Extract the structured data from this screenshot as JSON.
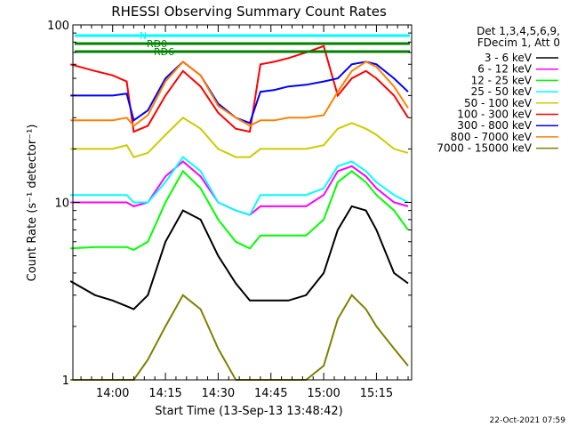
{
  "chart_data": {
    "type": "line",
    "title": "RHESSI Observing Summary Count Rates",
    "xlabel": "Start Time (13-Sep-13 13:48:42)",
    "ylabel": "Count Rate (s⁻¹ detector⁻¹)",
    "yscale": "log",
    "xlim": [
      "13:48:42",
      "15:25:00"
    ],
    "ylim": [
      1,
      100
    ],
    "x_ticks": [
      "14:00",
      "14:15",
      "14:30",
      "14:45",
      "15:00",
      "15:15"
    ],
    "y_ticks": [
      "1",
      "10",
      "100"
    ],
    "legend": {
      "placement": "right",
      "header": [
        "Det 1,3,4,5,6,9,",
        "FDecim 1, Att 0"
      ],
      "entries": [
        {
          "label": "3 - 6 keV",
          "color": "#000000"
        },
        {
          "label": "6 - 12 keV",
          "color": "#ff00ff"
        },
        {
          "label": "12 - 25 keV",
          "color": "#00ff00"
        },
        {
          "label": "25 - 50 keV",
          "color": "#00ffff"
        },
        {
          "label": "50 - 100 keV",
          "color": "#cccc00"
        },
        {
          "label": "100 - 300 keV",
          "color": "#ff0000"
        },
        {
          "label": "300 - 800 keV",
          "color": "#0000ff"
        },
        {
          "label": "800 - 7000 keV",
          "color": "#ff8000"
        },
        {
          "label": "7000 - 15000 keV",
          "color": "#808000"
        }
      ]
    },
    "flags": [
      {
        "label": "N",
        "color": "#00ffff"
      },
      {
        "label": "RD0",
        "color": "#008000"
      },
      {
        "label": "RD6",
        "color": "#008000"
      }
    ],
    "series": [
      {
        "name": "3 - 6 keV",
        "color": "#000000",
        "x": [
          "13:48",
          "13:55",
          "14:00",
          "14:04",
          "14:06",
          "14:10",
          "14:15",
          "14:20",
          "14:25",
          "14:30",
          "14:35",
          "14:39",
          "14:42",
          "14:46",
          "14:50",
          "14:55",
          "15:00",
          "15:04",
          "15:08",
          "15:12",
          "15:15",
          "15:20",
          "15:24"
        ],
        "y": [
          3.6,
          3.0,
          2.8,
          2.6,
          2.5,
          3.0,
          6,
          9,
          8,
          5,
          3.5,
          2.8,
          2.8,
          2.8,
          2.8,
          3.0,
          4,
          7,
          9.5,
          9,
          7,
          4,
          3.5
        ]
      },
      {
        "name": "6 - 12 keV",
        "color": "#ff00ff",
        "x": [
          "13:48",
          "13:55",
          "14:00",
          "14:04",
          "14:06",
          "14:10",
          "14:15",
          "14:20",
          "14:25",
          "14:30",
          "14:35",
          "14:39",
          "14:42",
          "14:46",
          "14:50",
          "14:55",
          "15:00",
          "15:04",
          "15:08",
          "15:12",
          "15:15",
          "15:20",
          "15:24"
        ],
        "y": [
          10,
          10,
          10,
          10,
          9.5,
          10,
          14,
          17,
          14,
          10,
          9,
          8.5,
          9.5,
          9.5,
          9.5,
          9.5,
          11,
          15,
          16,
          14,
          12,
          10,
          9.5
        ]
      },
      {
        "name": "12 - 25 keV",
        "color": "#00ff00",
        "x": [
          "13:48",
          "13:55",
          "14:00",
          "14:04",
          "14:06",
          "14:10",
          "14:15",
          "14:20",
          "14:25",
          "14:30",
          "14:35",
          "14:39",
          "14:42",
          "14:46",
          "14:50",
          "14:55",
          "15:00",
          "15:04",
          "15:08",
          "15:12",
          "15:15",
          "15:20",
          "15:24"
        ],
        "y": [
          5.5,
          5.6,
          5.6,
          5.6,
          5.4,
          6,
          10,
          15,
          12,
          8,
          6,
          5.5,
          6.5,
          6.5,
          6.5,
          6.5,
          8,
          13,
          15,
          13,
          11,
          9,
          7
        ]
      },
      {
        "name": "25 - 50 keV",
        "color": "#00ffff",
        "x": [
          "13:48",
          "13:55",
          "14:00",
          "14:04",
          "14:06",
          "14:10",
          "14:15",
          "14:20",
          "14:25",
          "14:30",
          "14:35",
          "14:39",
          "14:42",
          "14:46",
          "14:50",
          "14:55",
          "15:00",
          "15:04",
          "15:08",
          "15:12",
          "15:15",
          "15:20",
          "15:24"
        ],
        "y": [
          11,
          11,
          11,
          11,
          10,
          10,
          13,
          18,
          15,
          10,
          9,
          8.5,
          11,
          11,
          11,
          11,
          12,
          16,
          17,
          15,
          13,
          11,
          10
        ]
      },
      {
        "name": "50 - 100 keV",
        "color": "#cccc00",
        "x": [
          "13:48",
          "13:55",
          "14:00",
          "14:04",
          "14:06",
          "14:10",
          "14:15",
          "14:20",
          "14:25",
          "14:30",
          "14:35",
          "14:39",
          "14:42",
          "14:46",
          "14:50",
          "14:55",
          "15:00",
          "15:04",
          "15:08",
          "15:12",
          "15:15",
          "15:20",
          "15:24"
        ],
        "y": [
          20,
          20,
          20,
          21,
          18,
          19,
          24,
          30,
          26,
          20,
          18,
          18,
          20,
          20,
          20,
          20,
          21,
          26,
          28,
          26,
          24,
          20,
          19
        ]
      },
      {
        "name": "100 - 300 keV",
        "color": "#ff0000",
        "x": [
          "13:48",
          "13:55",
          "14:00",
          "14:04",
          "14:06",
          "14:10",
          "14:15",
          "14:20",
          "14:25",
          "14:30",
          "14:35",
          "14:39",
          "14:42",
          "14:46",
          "14:50",
          "14:55",
          "15:00",
          "15:04",
          "15:08",
          "15:12",
          "15:15",
          "15:20",
          "15:24"
        ],
        "y": [
          60,
          55,
          52,
          48,
          25,
          27,
          40,
          55,
          45,
          32,
          26,
          25,
          60,
          62,
          65,
          70,
          76,
          40,
          50,
          55,
          50,
          40,
          30
        ]
      },
      {
        "name": "300 - 800 keV",
        "color": "#0000ff",
        "x": [
          "13:48",
          "13:55",
          "14:00",
          "14:04",
          "14:06",
          "14:10",
          "14:15",
          "14:20",
          "14:25",
          "14:30",
          "14:35",
          "14:39",
          "14:42",
          "14:46",
          "14:50",
          "14:55",
          "15:00",
          "15:04",
          "15:08",
          "15:12",
          "15:15",
          "15:20",
          "15:24"
        ],
        "y": [
          40,
          40,
          40,
          41,
          29,
          33,
          50,
          62,
          52,
          36,
          30,
          28,
          42,
          43,
          45,
          46,
          48,
          50,
          60,
          62,
          60,
          50,
          42
        ]
      },
      {
        "name": "800 - 7000 keV",
        "color": "#ff8000",
        "x": [
          "13:48",
          "13:55",
          "14:00",
          "14:04",
          "14:06",
          "14:10",
          "14:15",
          "14:20",
          "14:25",
          "14:30",
          "14:35",
          "14:39",
          "14:42",
          "14:46",
          "14:50",
          "14:55",
          "15:00",
          "15:04",
          "15:08",
          "15:12",
          "15:15",
          "15:20",
          "15:24"
        ],
        "y": [
          29,
          29,
          29,
          30,
          27,
          31,
          48,
          62,
          52,
          35,
          30,
          27,
          29,
          29,
          30,
          30,
          31,
          42,
          55,
          62,
          58,
          45,
          34
        ]
      },
      {
        "name": "7000 - 15000 keV",
        "color": "#808000",
        "x": [
          "13:48",
          "13:55",
          "14:00",
          "14:04",
          "14:06",
          "14:10",
          "14:15",
          "14:20",
          "14:25",
          "14:30",
          "14:35",
          "14:39",
          "14:42",
          "14:46",
          "14:50",
          "14:55",
          "15:00",
          "15:04",
          "15:08",
          "15:12",
          "15:15",
          "15:20",
          "15:24"
        ],
        "y": [
          1,
          1,
          1,
          1,
          1,
          1.3,
          2,
          3,
          2.5,
          1.5,
          1,
          1,
          1,
          1,
          1,
          1,
          1.2,
          2.2,
          3,
          2.5,
          2,
          1.5,
          1.2
        ]
      }
    ]
  },
  "footer": {
    "timestamp": "22-Oct-2021 07:59"
  }
}
